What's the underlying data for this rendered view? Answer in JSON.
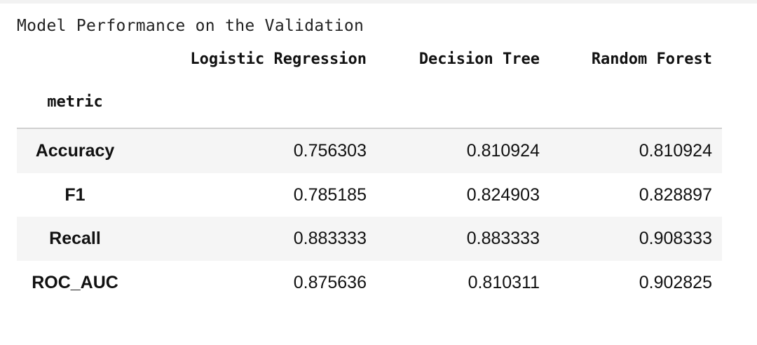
{
  "caption": "Model Performance on the Validation",
  "table": {
    "index_name": "metric",
    "columns": [
      "Logistic Regression",
      "Decision Tree",
      "Random Forest"
    ],
    "rows": [
      {
        "label": "Accuracy",
        "values": [
          "0.756303",
          "0.810924",
          "0.810924"
        ]
      },
      {
        "label": "F1",
        "values": [
          "0.785185",
          "0.824903",
          "0.828897"
        ]
      },
      {
        "label": "Recall",
        "values": [
          "0.883333",
          "0.883333",
          "0.908333"
        ]
      },
      {
        "label": "ROC_AUC",
        "values": [
          "0.875636",
          "0.810311",
          "0.902825"
        ]
      }
    ]
  },
  "colors": {
    "stripe": "#f5f5f5",
    "divider": "#d0d0d0",
    "text": "#111111"
  }
}
